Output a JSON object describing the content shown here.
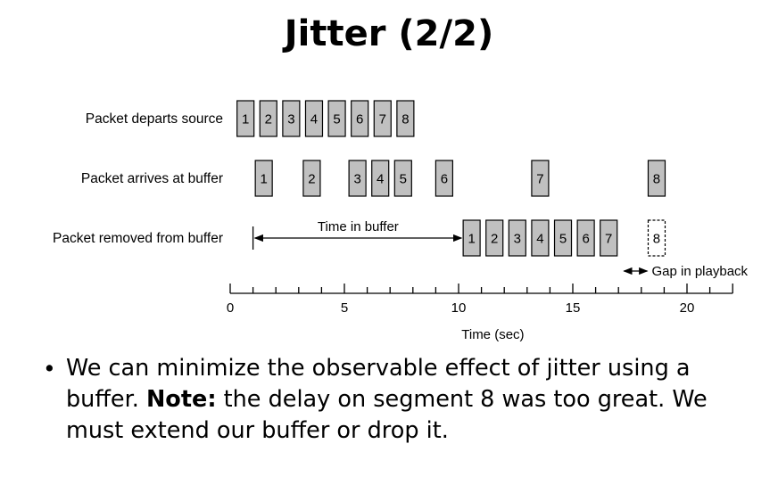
{
  "title": "Jitter (2/2)",
  "diagram": {
    "rows": [
      {
        "label": "Packet departs source",
        "packets": [
          {
            "n": "1",
            "t": 0.3
          },
          {
            "n": "2",
            "t": 1.3
          },
          {
            "n": "3",
            "t": 2.3
          },
          {
            "n": "4",
            "t": 3.3
          },
          {
            "n": "5",
            "t": 4.3
          },
          {
            "n": "6",
            "t": 5.3
          },
          {
            "n": "7",
            "t": 6.3
          },
          {
            "n": "8",
            "t": 7.3
          }
        ]
      },
      {
        "label": "Packet arrives at buffer",
        "packets": [
          {
            "n": "1",
            "t": 1.1
          },
          {
            "n": "2",
            "t": 3.2
          },
          {
            "n": "3",
            "t": 5.2
          },
          {
            "n": "4",
            "t": 6.2
          },
          {
            "n": "5",
            "t": 7.2
          },
          {
            "n": "6",
            "t": 9.0
          },
          {
            "n": "7",
            "t": 13.2
          },
          {
            "n": "8",
            "t": 18.3
          }
        ]
      },
      {
        "label": "Packet removed from buffer",
        "packets": [
          {
            "n": "1",
            "t": 10.2
          },
          {
            "n": "2",
            "t": 11.2
          },
          {
            "n": "3",
            "t": 12.2
          },
          {
            "n": "4",
            "t": 13.2
          },
          {
            "n": "5",
            "t": 14.2
          },
          {
            "n": "6",
            "t": 15.2
          },
          {
            "n": "7",
            "t": 16.2
          },
          {
            "n": "8",
            "t": 18.3,
            "missing": true
          }
        ]
      }
    ],
    "time_in_buffer_label": "Time in buffer",
    "time_in_buffer_range": [
      1.0,
      10.2
    ],
    "gap_label": "Gap in playback",
    "gap_range": [
      17.2,
      18.3
    ],
    "axis": {
      "label": "Time (sec)",
      "min": 0,
      "max": 22,
      "tick_step": 1,
      "major_ticks": [
        0,
        5,
        10,
        15,
        20
      ],
      "tick_labels": [
        "0",
        "5",
        "10",
        "15",
        "20"
      ]
    },
    "colors": {
      "packet_fill": "#c0c0c0",
      "stroke": "#000000"
    }
  },
  "bullet": {
    "before": "We can minimize the observable effect of jitter using a buffer. ",
    "bold": "Note:",
    "after": " the delay on segment 8 was too great. We must extend our buffer or drop it."
  }
}
